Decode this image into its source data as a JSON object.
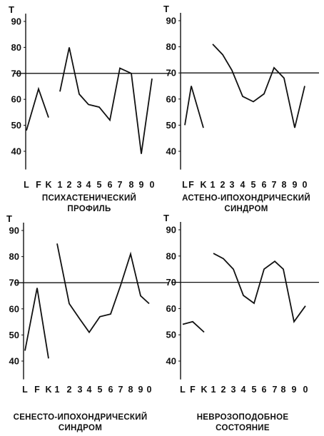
{
  "chart_data": [
    {
      "type": "line",
      "title": "ПСИХАСТЕНИЧЕСКИЙ ПРОФИЛЬ",
      "title_lines": [
        "ПСИХАСТЕНИЧЕСКИЙ",
        "ПРОФИЛЬ"
      ],
      "ylabel": "T",
      "categories": [
        "L",
        "F",
        "K",
        "1",
        "2",
        "3",
        "4",
        "5",
        "6",
        "7",
        "8",
        "9",
        "0"
      ],
      "yticks": [
        40,
        50,
        60,
        70,
        80,
        90
      ],
      "ylim": [
        33,
        93
      ],
      "reference_line": 70,
      "grid": false,
      "validity_scales": [
        48,
        64,
        53
      ],
      "clinical_scales": [
        63,
        80,
        62,
        58,
        57,
        52,
        72,
        70,
        39,
        68
      ]
    },
    {
      "type": "line",
      "title": "АСТЕНО-ИПОХОНДРИЧЕСКИЙ СИНДРОМ",
      "title_lines": [
        "АСТЕНО-ИПОХОНДРИЧЕСКИЙ",
        "СИНДРОМ"
      ],
      "ylabel": "T",
      "categories": [
        "L",
        "F",
        "K",
        "1",
        "2",
        "3",
        "4",
        "5",
        "6",
        "7",
        "8",
        "9",
        "0"
      ],
      "yticks": [
        40,
        50,
        60,
        70,
        80,
        90
      ],
      "ylim": [
        33,
        93
      ],
      "reference_line": 70,
      "grid": false,
      "validity_scales": [
        50,
        65,
        49
      ],
      "clinical_scales": [
        81,
        77,
        71,
        61,
        59,
        62,
        72,
        68,
        49,
        65
      ]
    },
    {
      "type": "line",
      "title": "СЕНЕСТО-ИПОХОНДРИЧЕСКИЙ СИНДРОМ",
      "title_lines": [
        "СЕНЕСТО-ИПОХОНДРИЧЕСКИЙ",
        "СИНДРОМ"
      ],
      "ylabel": "T",
      "categories": [
        "L",
        "F",
        "K",
        "1",
        "2",
        "3",
        "4",
        "5",
        "6",
        "7",
        "8",
        "9",
        "0"
      ],
      "yticks": [
        40,
        50,
        60,
        70,
        80,
        90
      ],
      "ylim": [
        33,
        93
      ],
      "reference_line": 70,
      "grid": false,
      "validity_scales": [
        44,
        68,
        41
      ],
      "clinical_scales": [
        85,
        62,
        56,
        51,
        57,
        58,
        69,
        81,
        65,
        62
      ]
    },
    {
      "type": "line",
      "title": "НЕВРОЗОПОДОБНОЕ СОСТОЯНИЕ",
      "title_lines": [
        "НЕВРОЗОПОДОБНОЕ",
        "СОСТОЯНИЕ"
      ],
      "ylabel": "T",
      "categories": [
        "L",
        "F",
        "K",
        "1",
        "2",
        "3",
        "4",
        "5",
        "6",
        "7",
        "8",
        "9",
        "0"
      ],
      "yticks": [
        40,
        50,
        60,
        70,
        80,
        90
      ],
      "ylim": [
        33,
        93
      ],
      "reference_line": 70,
      "grid": false,
      "validity_scales": [
        54,
        55,
        51
      ],
      "clinical_scales": [
        81,
        79,
        75,
        65,
        62,
        75,
        78,
        75,
        55,
        61
      ]
    }
  ]
}
